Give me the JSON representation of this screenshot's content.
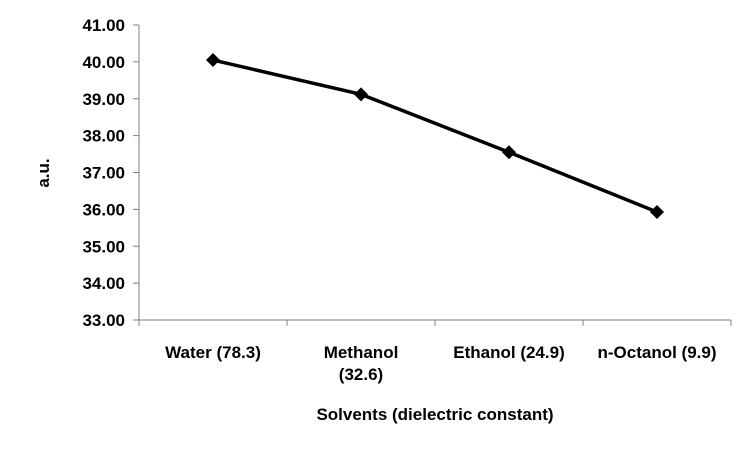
{
  "chart_data": {
    "type": "line",
    "categories": [
      [
        "Water (78.3)"
      ],
      [
        "Methanol",
        "(32.6)"
      ],
      [
        "Ethanol (24.9)"
      ],
      [
        "n-Octanol (9.9)"
      ]
    ],
    "series": [
      {
        "values": [
          40.05,
          39.12,
          37.55,
          35.93
        ],
        "color": "#000000",
        "marker": "diamond"
      }
    ],
    "xlabel": "Solvents (dielectric constant)",
    "ylabel": "a.u.",
    "ylim": [
      33.0,
      41.0
    ],
    "yticks": [
      "33.00",
      "34.00",
      "35.00",
      "36.00",
      "37.00",
      "38.00",
      "39.00",
      "40.00",
      "41.00"
    ],
    "grid": false,
    "legend": "none"
  }
}
